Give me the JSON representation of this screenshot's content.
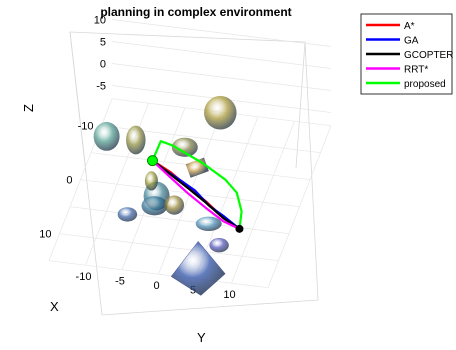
{
  "chart_data": {
    "type": "line",
    "title": "planning in complex environment",
    "xlabel": "X",
    "ylabel": "Y",
    "zlabel": "Z",
    "xlim": [
      -15,
      15
    ],
    "ylim": [
      -15,
      15
    ],
    "zlim": [
      -8,
      12
    ],
    "x_ticks": [
      "-10",
      "0",
      "10"
    ],
    "y_ticks": [
      "-10",
      "-5",
      "0",
      "5",
      "10"
    ],
    "z_ticks": [
      "10",
      "5",
      "0",
      "-5"
    ],
    "grid": true,
    "legend_position": "top-right",
    "series": [
      {
        "name": "A*",
        "color": "#ff0000",
        "points": [
          [
            -3,
            -6,
            -5.5
          ],
          [
            -1,
            -3,
            -5.0
          ],
          [
            1,
            0,
            -5.3
          ],
          [
            3,
            3,
            -5.5
          ],
          [
            5,
            6,
            -6.2
          ],
          [
            6,
            8.5,
            -7.0
          ]
        ]
      },
      {
        "name": "GA",
        "color": "#0000ff",
        "points": [
          [
            -3,
            -6,
            -5.5
          ],
          [
            -2,
            -4,
            -6.0
          ],
          [
            -0.5,
            -1,
            -6.4
          ],
          [
            1,
            1,
            -6.0
          ],
          [
            3,
            3.5,
            -6.5
          ],
          [
            4.5,
            6,
            -6.6
          ],
          [
            6,
            8.5,
            -7.0
          ]
        ]
      },
      {
        "name": "GCOPTER",
        "color": "#000000",
        "points": [
          [
            -3,
            -6,
            -5.5
          ],
          [
            -1,
            -3,
            -5.5
          ],
          [
            1,
            0,
            -5.6
          ],
          [
            3,
            3,
            -5.8
          ],
          [
            5,
            6,
            -6.3
          ],
          [
            6,
            8.5,
            -7.0
          ]
        ]
      },
      {
        "name": "RRT*",
        "color": "#ff00ff",
        "points": [
          [
            -3,
            -6,
            -5.5
          ],
          [
            -1,
            -3,
            -6.2
          ],
          [
            1,
            0,
            -6.8
          ],
          [
            3,
            3,
            -7.0
          ],
          [
            5,
            6,
            -7.0
          ],
          [
            6,
            8.5,
            -7.0
          ]
        ]
      },
      {
        "name": "proposed",
        "color": "#00ff00",
        "points": [
          [
            -3,
            -6,
            -5.5
          ],
          [
            -3.5,
            -5,
            -1.5
          ],
          [
            -2,
            -3,
            -0.2
          ],
          [
            1,
            2,
            0.5
          ],
          [
            4,
            6,
            1.2
          ],
          [
            5.5,
            8,
            0.5
          ],
          [
            6,
            8.8,
            -3.0
          ],
          [
            6,
            8.5,
            -7.0
          ]
        ]
      }
    ],
    "start_point": [
      -3,
      -6,
      -5.5
    ],
    "goal_point": [
      6,
      8.5,
      -7.0
    ],
    "obstacles": [
      {
        "shape": "ellipsoid",
        "center": [
          -2,
          -12,
          0
        ],
        "radii": [
          2,
          2,
          3
        ],
        "color": "#5fa89a"
      },
      {
        "shape": "ellipsoid",
        "center": [
          -2,
          -8,
          0
        ],
        "radii": [
          1,
          1.5,
          3
        ],
        "color": "#9a9a4a"
      },
      {
        "shape": "ellipsoid",
        "center": [
          -4,
          3,
          6
        ],
        "radii": [
          2.5,
          2.5,
          3.5
        ],
        "color": "#b0a040"
      },
      {
        "shape": "ellipsoid",
        "center": [
          -1,
          -1,
          1
        ],
        "radii": [
          2,
          2,
          2
        ],
        "color": "#8a8a50"
      },
      {
        "shape": "box",
        "center": [
          0,
          1,
          -2
        ],
        "radii": [
          1.5,
          1.5,
          1.5
        ],
        "color": "#c8a050"
      },
      {
        "shape": "ellipsoid",
        "center": [
          2,
          -4,
          -7
        ],
        "radii": [
          2,
          2,
          3
        ],
        "color": "#4f90a0"
      },
      {
        "shape": "ellipsoid",
        "center": [
          3,
          -4,
          -8
        ],
        "radii": [
          2.5,
          2,
          2
        ],
        "color": "#3f7fa0"
      },
      {
        "shape": "ellipsoid",
        "center": [
          5,
          4,
          -8
        ],
        "radii": [
          2,
          2,
          1.5
        ],
        "color": "#5a9ac0"
      },
      {
        "shape": "ellipsoid",
        "center": [
          7,
          6,
          -10
        ],
        "radii": [
          1.5,
          1.5,
          1.5
        ],
        "color": "#6060c0"
      },
      {
        "shape": "ellipsoid",
        "center": [
          2,
          -8,
          -12
        ],
        "radii": [
          1.5,
          1.5,
          1.5
        ],
        "color": "#4a70b0"
      },
      {
        "shape": "octahedron",
        "center": [
          10,
          4,
          -12
        ],
        "radii": [
          3,
          3,
          3
        ],
        "color": "#4060b0"
      },
      {
        "shape": "ellipsoid",
        "center": [
          1,
          -5,
          -5
        ],
        "radii": [
          1,
          1,
          2
        ],
        "color": "#a0a040"
      },
      {
        "shape": "ellipsoid",
        "center": [
          4,
          -1,
          -6
        ],
        "radii": [
          1.5,
          1.5,
          2
        ],
        "color": "#a09040"
      }
    ]
  }
}
